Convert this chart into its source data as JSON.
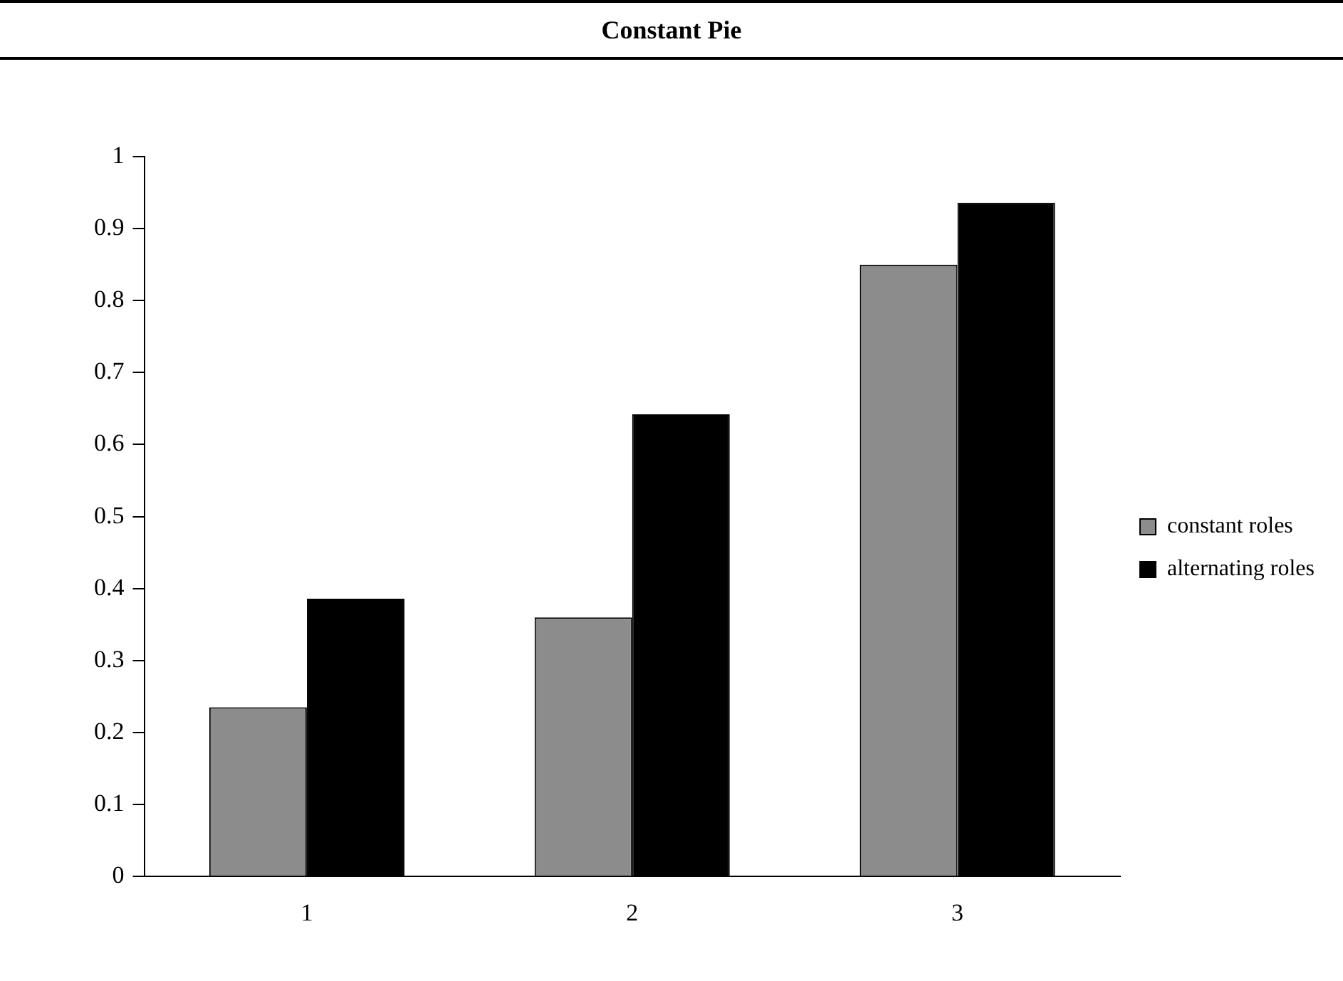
{
  "chart_data": {
    "type": "bar",
    "title": "Constant Pie",
    "categories": [
      "1",
      "2",
      "3"
    ],
    "series": [
      {
        "name": "constant roles",
        "color": "#8c8c8c",
        "values": [
          0.235,
          0.36,
          0.85
        ]
      },
      {
        "name": "alternating roles",
        "color": "#000000",
        "values": [
          0.386,
          0.642,
          0.936
        ]
      }
    ],
    "ylim": [
      0,
      1
    ],
    "yticks": [
      0,
      0.1,
      0.2,
      0.3,
      0.4,
      0.5,
      0.6,
      0.7,
      0.8,
      0.9,
      1
    ],
    "grid": false,
    "legend": "right"
  }
}
